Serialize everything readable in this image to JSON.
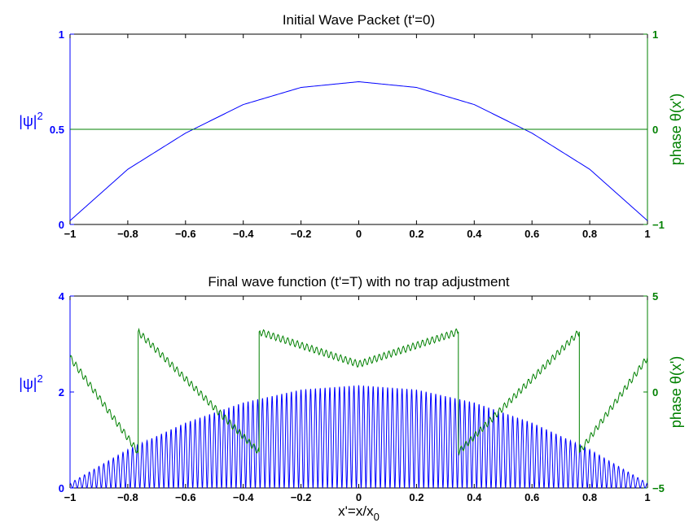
{
  "chart_data": [
    {
      "type": "line",
      "title": "Initial Wave Packet (t'=0)",
      "xlabel": "",
      "ylabel_left": "|ψ|",
      "ylabel_left_sup": "2",
      "ylabel_right": "phase  θ(x')",
      "xlim": [
        -1,
        1
      ],
      "ylim_left": [
        0,
        1
      ],
      "ylim_right": [
        -1,
        1
      ],
      "x_ticks": [
        "−1",
        "−0.8",
        "−0.6",
        "−0.4",
        "−0.2",
        "0",
        "0.2",
        "0.4",
        "0.6",
        "0.8",
        "1"
      ],
      "y_ticks_left": [
        "0",
        "0.5",
        "1"
      ],
      "y_ticks_right": [
        "−1",
        "0",
        "1"
      ],
      "colors": {
        "density": "#0000ff",
        "phase": "#008000",
        "axes": "#000000"
      },
      "series": [
        {
          "axis": "left",
          "kind": "inverted parabola",
          "x": [
            -1,
            -0.8,
            -0.6,
            -0.4,
            -0.2,
            0,
            0.2,
            0.4,
            0.6,
            0.8,
            1
          ],
          "y": [
            0.02,
            0.29,
            0.48,
            0.63,
            0.72,
            0.75,
            0.72,
            0.63,
            0.48,
            0.29,
            0.02
          ]
        },
        {
          "axis": "right",
          "kind": "constant",
          "x": [
            -1,
            1
          ],
          "y": [
            0,
            0
          ]
        }
      ]
    },
    {
      "type": "line",
      "title": "Final wave function (t'=T) with no trap adjustment",
      "xlabel": "x'=x/x",
      "xlabel_sub": "0",
      "ylabel_left": "|ψ|",
      "ylabel_left_sup": "2",
      "ylabel_right": "phase  θ(x')",
      "xlim": [
        -1,
        1
      ],
      "ylim_left": [
        0,
        4
      ],
      "ylim_right": [
        -5,
        5
      ],
      "x_ticks": [
        "−1",
        "−0.8",
        "−0.6",
        "−0.4",
        "−0.2",
        "0",
        "0.2",
        "0.4",
        "0.6",
        "0.8",
        "1"
      ],
      "y_ticks_left": [
        "0",
        "2",
        "4"
      ],
      "y_ticks_right": [
        "−5",
        "0",
        "5"
      ],
      "colors": {
        "density": "#0000ff",
        "phase": "#008000",
        "axes": "#000000"
      },
      "series": [
        {
          "axis": "left",
          "kind": "fast oscillation from 0 up to an inverted parabola envelope",
          "fringe_count": 120,
          "envelope_x": [
            -1,
            -0.8,
            -0.6,
            -0.4,
            -0.2,
            0,
            0.2,
            0.4,
            0.6,
            0.8,
            1
          ],
          "envelope_y": [
            0.1,
            0.8,
            1.36,
            1.78,
            2.05,
            2.14,
            2.05,
            1.78,
            1.36,
            0.8,
            0.1
          ]
        },
        {
          "axis": "right",
          "kind": "phase wrapped into (-π, π]",
          "x": [
            -1,
            -0.764,
            -0.764,
            -0.345,
            -0.345,
            0,
            0.345,
            0.345,
            0.764,
            0.764,
            1
          ],
          "y": [
            1.8,
            -3.14,
            3.14,
            -3.14,
            3.14,
            1.45,
            3.14,
            -3.14,
            3.14,
            -3.14,
            1.8
          ]
        }
      ]
    }
  ]
}
